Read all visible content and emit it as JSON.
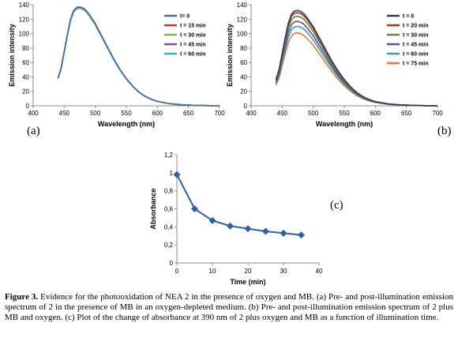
{
  "chart_data": [
    {
      "id": "a",
      "panel_label": "(a)",
      "type": "line",
      "xlabel": "Wavelength (nm)",
      "ylabel": "Emission intensity",
      "xlim": [
        400,
        700
      ],
      "ylim": [
        0,
        140
      ],
      "xticks": [
        400,
        450,
        500,
        550,
        600,
        650,
        700
      ],
      "yticks": [
        0,
        20,
        40,
        60,
        80,
        100,
        120,
        140
      ],
      "grid": false,
      "legend": "right",
      "x": [
        440,
        445,
        450,
        455,
        460,
        465,
        470,
        475,
        480,
        485,
        490,
        500,
        510,
        520,
        530,
        540,
        550,
        560,
        570,
        580,
        590,
        600,
        620,
        640,
        660,
        680,
        700
      ],
      "series": [
        {
          "name": "t= 0",
          "color": "#3c6fb4",
          "peak": 137
        },
        {
          "name": "t = 15 min",
          "color": "#c0392b",
          "peak": 137
        },
        {
          "name": "t = 30 min",
          "color": "#7cbf3c",
          "peak": 136
        },
        {
          "name": "t = 45 min",
          "color": "#7a4fa3",
          "peak": 136
        },
        {
          "name": "t = 60 min",
          "color": "#38aec4",
          "peak": 135
        }
      ],
      "shape": [
        0.28,
        0.38,
        0.55,
        0.72,
        0.87,
        0.96,
        0.995,
        1.0,
        0.99,
        0.965,
        0.925,
        0.83,
        0.71,
        0.59,
        0.47,
        0.365,
        0.275,
        0.2,
        0.14,
        0.097,
        0.066,
        0.045,
        0.021,
        0.01,
        0.005,
        0.002,
        0.001
      ]
    },
    {
      "id": "b",
      "panel_label": "(b)",
      "type": "line",
      "xlabel": "Wavelength (nm)",
      "ylabel": "Emission intensity",
      "xlim": [
        400,
        700
      ],
      "ylim": [
        0,
        140
      ],
      "xticks": [
        400,
        450,
        500,
        550,
        600,
        650,
        700
      ],
      "yticks": [
        0,
        20,
        40,
        60,
        80,
        100,
        120,
        140
      ],
      "grid": false,
      "legend": "right",
      "x": [
        440,
        445,
        450,
        455,
        460,
        465,
        470,
        475,
        480,
        485,
        490,
        500,
        510,
        520,
        530,
        540,
        550,
        560,
        570,
        580,
        590,
        600,
        620,
        640,
        660,
        680,
        700
      ],
      "series": [
        {
          "name": "t = 0",
          "color": "#2a3f6b",
          "peak": 132
        },
        {
          "name": "t = 20 min",
          "color": "#b0302a",
          "peak": 129
        },
        {
          "name": "t = 30 min",
          "color": "#5c8a2e",
          "peak": 124
        },
        {
          "name": "t = 45 min",
          "color": "#6c4a93",
          "peak": 117
        },
        {
          "name": "t = 60 min",
          "color": "#2f9fb5",
          "peak": 110
        },
        {
          "name": "t = 75 min",
          "color": "#e07a3c",
          "peak": 101
        }
      ],
      "shape": [
        0.28,
        0.38,
        0.55,
        0.72,
        0.87,
        0.96,
        0.995,
        1.0,
        0.99,
        0.965,
        0.925,
        0.83,
        0.71,
        0.59,
        0.47,
        0.365,
        0.275,
        0.2,
        0.14,
        0.097,
        0.066,
        0.045,
        0.021,
        0.01,
        0.005,
        0.002,
        0.001
      ]
    },
    {
      "id": "c",
      "panel_label": "(c)",
      "type": "line",
      "xlabel": "Time (min)",
      "ylabel": "Absorbance",
      "xlim": [
        0,
        40
      ],
      "ylim": [
        0,
        1.2
      ],
      "xticks": [
        0,
        10,
        20,
        30,
        40
      ],
      "yticks": [
        "0",
        "0,2",
        "0,4",
        "0,6",
        "0,8",
        "1",
        "1,2"
      ],
      "grid": false,
      "marker": "diamond",
      "color": "#2e5f9e",
      "x": [
        0,
        5,
        10,
        15,
        20,
        25,
        30,
        35
      ],
      "values": [
        0.98,
        0.6,
        0.47,
        0.41,
        0.38,
        0.35,
        0.33,
        0.31
      ]
    }
  ],
  "caption": {
    "prefix": "Figure 3.",
    "text": " Evidence for the photooxidation of NEA 2 in the presence of oxygen and MB. (a) Pre- and post-illumination emission spectrum of 2 in the presence of MB in an oxygen-depleted medium. (b) Pre- and post-illumination emission spectrum of 2 plus MB and oxygen. (c) Plot of the change of absorbance at 390 nm of 2 plus oxygen and MB as a function of illumination time."
  }
}
